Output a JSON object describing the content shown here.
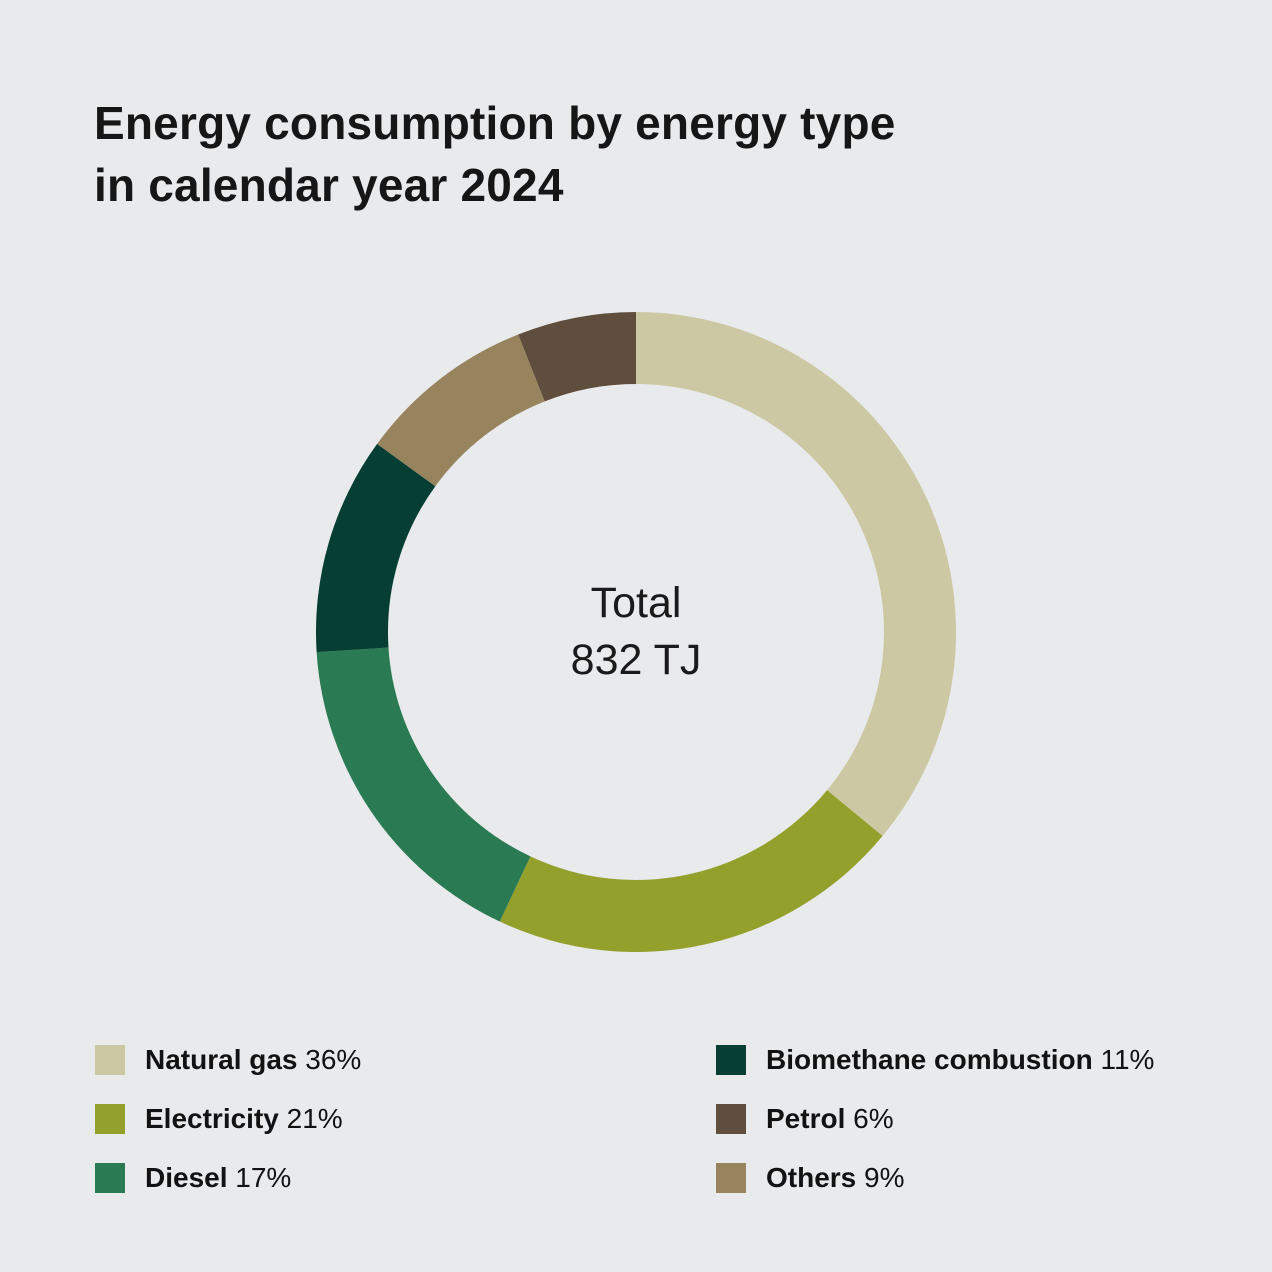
{
  "title": {
    "line1": "Energy consumption by energy type",
    "line2": "in calendar year 2024"
  },
  "center": {
    "label": "Total",
    "value": "832 TJ"
  },
  "colors": {
    "background": "#e9eaec",
    "text": "#161616"
  },
  "chart_data": {
    "type": "pie",
    "donut": true,
    "title": "Energy consumption by energy type in calendar year 2024",
    "center_label": "Total",
    "center_value": "832 TJ",
    "start_angle_deg": 0,
    "direction": "clockwise",
    "segments": [
      {
        "label": "Natural gas",
        "percent": 36,
        "color": "#ccc8a3"
      },
      {
        "label": "Electricity",
        "percent": 21,
        "color": "#94a02c"
      },
      {
        "label": "Diesel",
        "percent": 17,
        "color": "#2a7a53"
      },
      {
        "label": "Biomethane combustion",
        "percent": 11,
        "color": "#063e33"
      },
      {
        "label": "Others",
        "percent": 9,
        "color": "#97835d"
      },
      {
        "label": "Petrol",
        "percent": 6,
        "color": "#5f4d3d"
      }
    ],
    "legend_position": "bottom"
  },
  "legend": {
    "left": [
      {
        "label": "Natural gas",
        "percent": "36%",
        "color": "#ccc8a3"
      },
      {
        "label": "Electricity",
        "percent": "21%",
        "color": "#94a02c"
      },
      {
        "label": "Diesel",
        "percent": "17%",
        "color": "#2a7a53"
      }
    ],
    "right": [
      {
        "label": "Biomethane combustion",
        "percent": "11%",
        "color": "#063e33"
      },
      {
        "label": "Petrol",
        "percent": "6%",
        "color": "#5f4d3d"
      },
      {
        "label": "Others",
        "percent": "9%",
        "color": "#97835d"
      }
    ]
  }
}
